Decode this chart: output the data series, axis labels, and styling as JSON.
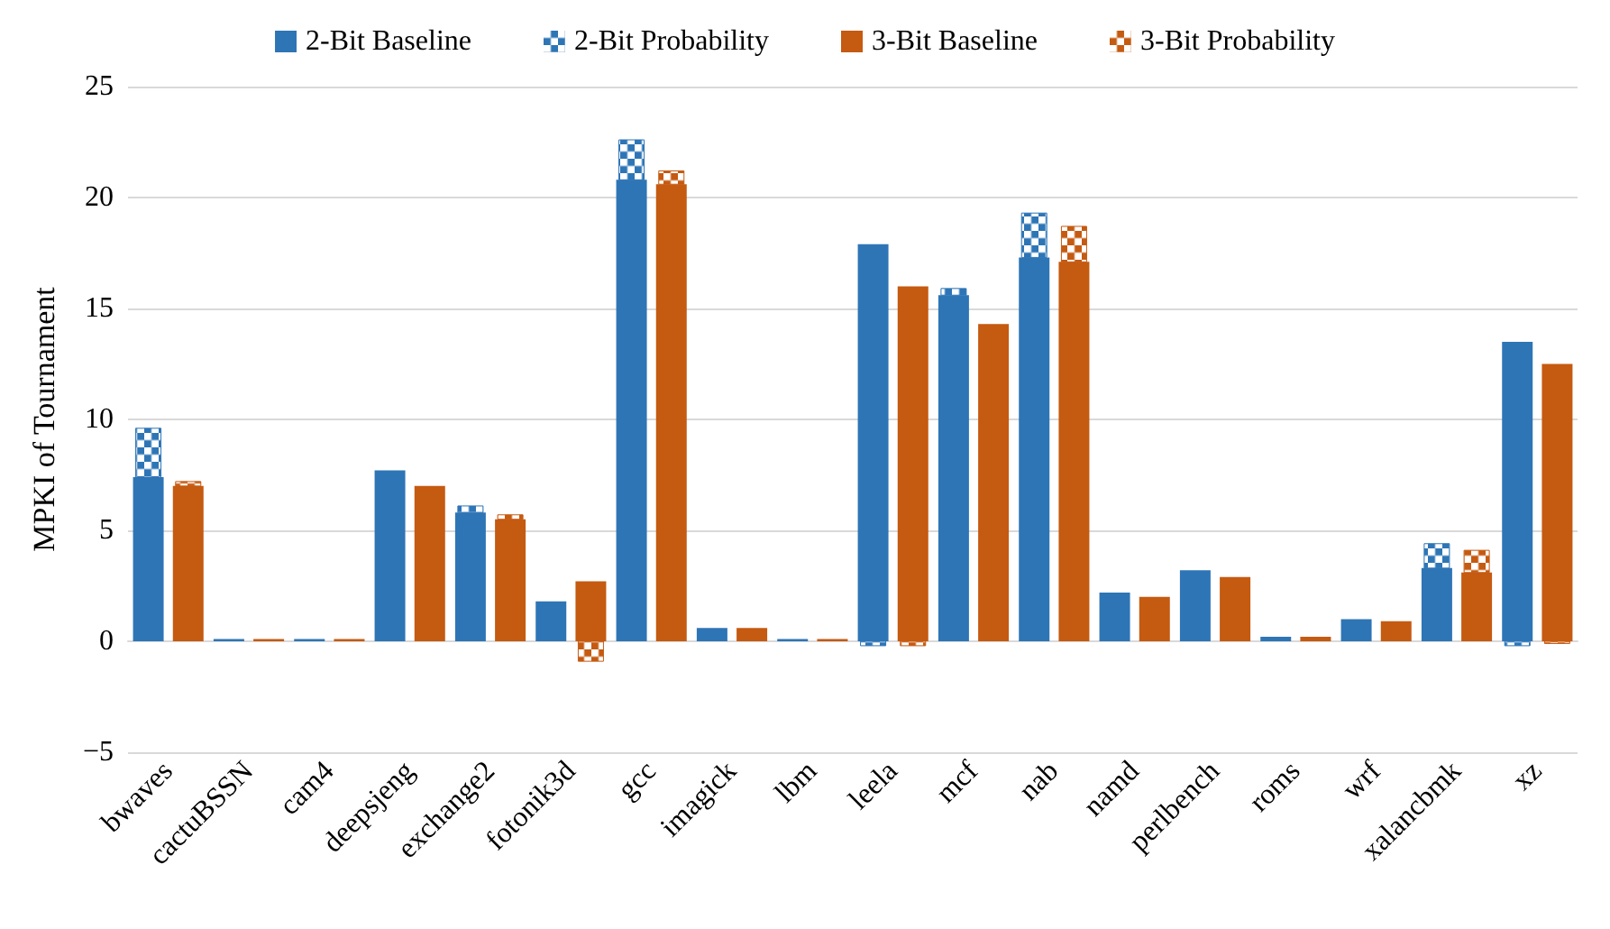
{
  "chart_data": {
    "type": "bar",
    "ylabel": "MPKI of Tournament",
    "categories": [
      "bwaves",
      "cactuBSSN",
      "cam4",
      "deepsjeng",
      "exchange2",
      "fotonik3d",
      "gcc",
      "imagick",
      "lbm",
      "leela",
      "mcf",
      "nab",
      "namd",
      "perlbench",
      "roms",
      "wrf",
      "xalancbmk",
      "xz"
    ],
    "series": [
      {
        "name": "2-Bit Baseline",
        "color": "#2e75b6",
        "values": [
          7.4,
          0.1,
          0.1,
          7.7,
          5.8,
          1.8,
          20.8,
          0.6,
          0.1,
          17.9,
          15.6,
          17.3,
          2.2,
          3.2,
          0.2,
          1.0,
          3.3,
          13.5
        ]
      },
      {
        "name": "2-Bit Probability",
        "color": "#2e75b6",
        "values": [
          2.2,
          null,
          null,
          null,
          0.3,
          null,
          1.8,
          null,
          null,
          -0.2,
          0.3,
          2.0,
          null,
          null,
          null,
          null,
          1.1,
          -0.2
        ],
        "base": [
          7.4,
          null,
          null,
          null,
          5.8,
          null,
          20.8,
          null,
          null,
          0,
          15.6,
          17.3,
          null,
          null,
          null,
          null,
          3.3,
          0
        ]
      },
      {
        "name": "3-Bit Baseline",
        "color": "#c55a11",
        "values": [
          7.0,
          0.1,
          0.1,
          7.0,
          5.5,
          2.7,
          20.6,
          0.6,
          0.1,
          16.0,
          14.3,
          17.1,
          2.0,
          2.9,
          0.2,
          0.9,
          3.1,
          12.5
        ]
      },
      {
        "name": "3-Bit Probability",
        "color": "#c55a11",
        "values": [
          0.2,
          null,
          null,
          null,
          0.2,
          -0.9,
          0.6,
          null,
          null,
          -0.2,
          null,
          1.6,
          null,
          null,
          null,
          null,
          1.0,
          -0.1
        ],
        "base": [
          7.0,
          null,
          null,
          null,
          5.5,
          0,
          20.6,
          null,
          null,
          0,
          null,
          17.1,
          null,
          null,
          null,
          null,
          3.1,
          0
        ]
      }
    ],
    "ylim": [
      -5,
      25
    ],
    "yticks": [
      -5,
      0,
      5,
      10,
      15,
      20,
      25
    ],
    "grid": "y",
    "legend": "top"
  }
}
